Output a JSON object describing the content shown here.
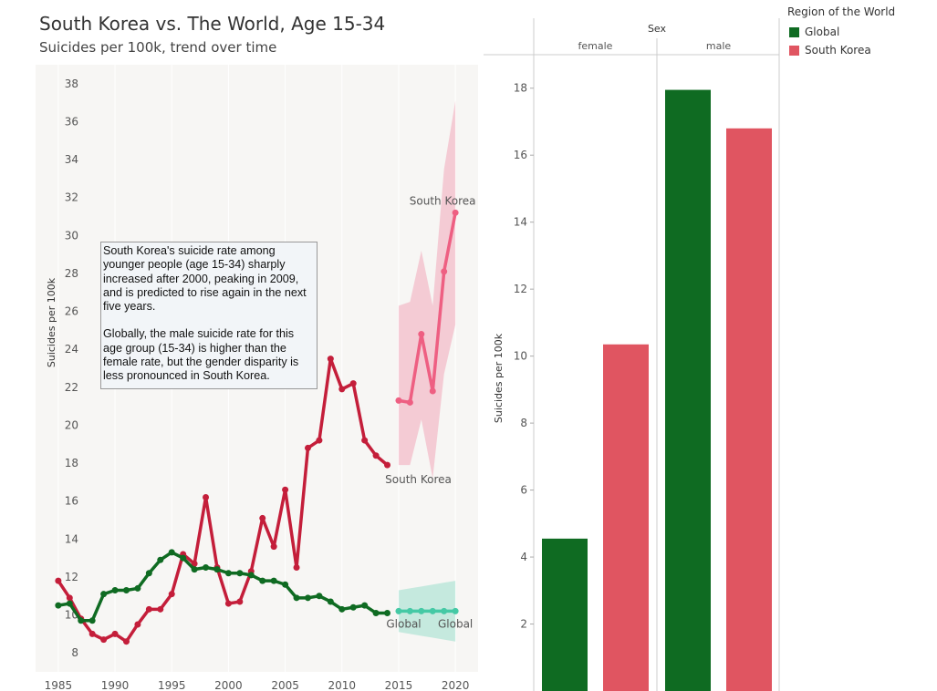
{
  "title": "South Korea vs. The World, Age 15-34",
  "subtitle": "Suicides per 100k, trend over time",
  "annotation": {
    "p1": "South Korea's suicide rate among younger people (age 15-34) sharply increased after 2000, peaking in 2009, and is predicted to rise again in the next five years.",
    "p2": "Globally, the male suicide rate for this age group (15-34) is higher than the female rate, but the gender disparity is less pronounced in South Korea."
  },
  "legend": {
    "title": "Region of the World",
    "items": [
      {
        "label": "Global",
        "color": "#0f6b22"
      },
      {
        "label": "South Korea",
        "color": "#e05561"
      }
    ]
  },
  "chart_data": [
    {
      "type": "line",
      "ylabel": "Suicides per 100k",
      "xlabel": "",
      "ylim": [
        7,
        39
      ],
      "xlim": [
        1983,
        2022
      ],
      "xticks": [
        "1985",
        "1990",
        "1995",
        "2000",
        "2005",
        "2010",
        "2015",
        "2020"
      ],
      "yticks": [
        "8",
        "10",
        "12",
        "14",
        "16",
        "18",
        "20",
        "22",
        "24",
        "26",
        "28",
        "30",
        "32",
        "34",
        "36",
        "38"
      ],
      "series": [
        {
          "name": "South Korea",
          "color": "#c41e3a",
          "x": [
            1985,
            1986,
            1987,
            1988,
            1989,
            1990,
            1991,
            1992,
            1993,
            1994,
            1995,
            1996,
            1997,
            1998,
            1999,
            2000,
            2001,
            2002,
            2003,
            2004,
            2005,
            2006,
            2007,
            2008,
            2009,
            2010,
            2011,
            2012,
            2013,
            2014
          ],
          "y": [
            11.8,
            10.9,
            9.8,
            9.0,
            8.7,
            9.0,
            8.6,
            9.5,
            10.3,
            10.3,
            11.1,
            13.2,
            12.7,
            16.2,
            12.5,
            10.6,
            10.7,
            12.3,
            15.1,
            13.6,
            16.6,
            12.5,
            18.8,
            19.2,
            23.5,
            21.9,
            22.2,
            19.2,
            18.4,
            17.9
          ]
        },
        {
          "name": "Global",
          "color": "#0f6b22",
          "x": [
            1985,
            1986,
            1987,
            1988,
            1989,
            1990,
            1991,
            1992,
            1993,
            1994,
            1995,
            1996,
            1997,
            1998,
            1999,
            2000,
            2001,
            2002,
            2003,
            2004,
            2005,
            2006,
            2007,
            2008,
            2009,
            2010,
            2011,
            2012,
            2013,
            2014
          ],
          "y": [
            10.5,
            10.6,
            9.7,
            9.7,
            11.1,
            11.3,
            11.3,
            11.4,
            12.2,
            12.9,
            13.3,
            13.0,
            12.4,
            12.5,
            12.4,
            12.2,
            12.2,
            12.1,
            11.8,
            11.8,
            11.6,
            10.9,
            10.9,
            11.0,
            10.7,
            10.3,
            10.4,
            10.5,
            10.1,
            10.1
          ]
        },
        {
          "name": "South Korea",
          "forecast": true,
          "color": "#ee5f82",
          "x": [
            2015,
            2016,
            2017,
            2018,
            2019,
            2020
          ],
          "y": [
            21.3,
            21.2,
            24.8,
            21.8,
            28.1,
            31.2
          ],
          "upper": [
            26.3,
            26.5,
            29.2,
            26.3,
            33.5,
            37.1
          ],
          "lower": [
            17.9,
            17.9,
            20.3,
            17.2,
            22.7,
            25.3
          ]
        },
        {
          "name": "Global",
          "forecast": true,
          "color": "#45c9a5",
          "x": [
            2015,
            2016,
            2017,
            2018,
            2019,
            2020
          ],
          "y": [
            10.2,
            10.2,
            10.2,
            10.2,
            10.2,
            10.2
          ],
          "upper": [
            11.3,
            11.4,
            11.5,
            11.6,
            11.7,
            11.8
          ],
          "lower": [
            9.1,
            9.0,
            8.9,
            8.8,
            8.7,
            8.6
          ]
        }
      ],
      "annotations": [
        "South Korea",
        "South Korea",
        "Global",
        "Global"
      ]
    },
    {
      "type": "bar",
      "title": "Sex",
      "ylabel": "Suicides per 100k",
      "ylim": [
        0,
        19
      ],
      "yticks": [
        "2",
        "4",
        "6",
        "8",
        "10",
        "12",
        "14",
        "16",
        "18"
      ],
      "categories": [
        "female",
        "male"
      ],
      "series": [
        {
          "name": "Global",
          "color": "#0f6b22",
          "values": [
            4.55,
            17.95
          ]
        },
        {
          "name": "South Korea",
          "color": "#e05561",
          "values": [
            10.35,
            16.8
          ]
        }
      ]
    }
  ]
}
